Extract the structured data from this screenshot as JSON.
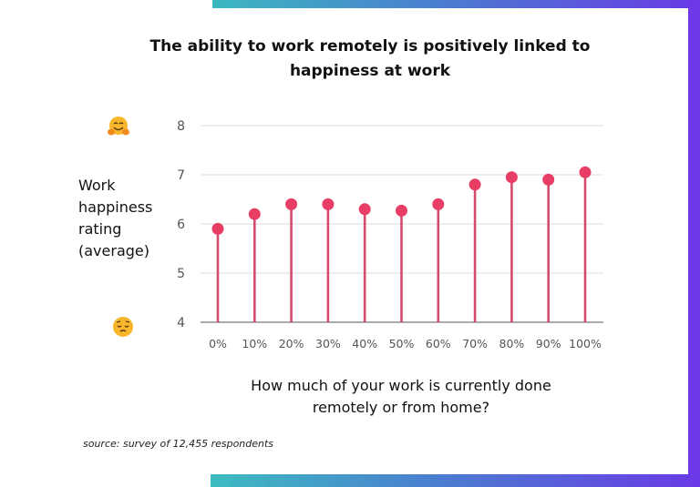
{
  "title": "The ability to work remotely is positively linked to happiness at work",
  "source": "source: survey of 12,455 respondents",
  "icons": {
    "top": "hugging-face-emoji",
    "bottom": "pensive-face-emoji"
  },
  "colors": {
    "stem": "#d64a6e",
    "dot": "#e83e66",
    "gradient_start": "#3cb8c0",
    "gradient_end": "#6a3ae6"
  },
  "chart_data": {
    "type": "lollipop",
    "title": "The ability to work remotely is positively linked to happiness at work",
    "xlabel": "How much of your work is currently done remotely or from home?",
    "ylabel": "Work happiness rating (average)",
    "categories": [
      "0%",
      "10%",
      "20%",
      "30%",
      "40%",
      "50%",
      "60%",
      "70%",
      "80%",
      "90%",
      "100%"
    ],
    "values": [
      5.9,
      6.2,
      6.4,
      6.4,
      6.3,
      6.27,
      6.4,
      6.8,
      6.95,
      6.9,
      7.05
    ],
    "ylim": [
      4,
      8
    ],
    "yticks": [
      "4",
      "5",
      "6",
      "7",
      "8"
    ],
    "grid": true
  }
}
